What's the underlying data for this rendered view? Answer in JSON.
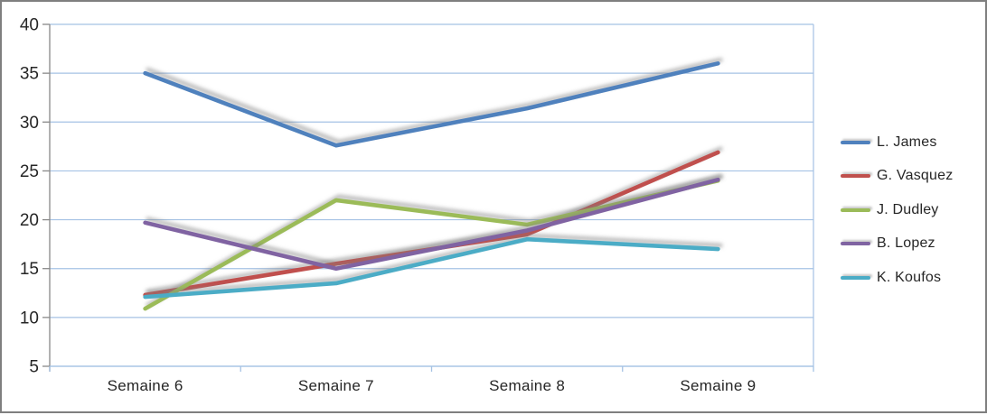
{
  "chart_data": {
    "type": "line",
    "title": "",
    "xlabel": "",
    "ylabel": "",
    "categories": [
      "Semaine 6",
      "Semaine 7",
      "Semaine 8",
      "Semaine 9"
    ],
    "series": [
      {
        "name": "L. James",
        "color": "#4F81BD",
        "values": [
          35,
          27.6,
          31.4,
          36
        ]
      },
      {
        "name": "G. Vasquez",
        "color": "#C0504D",
        "values": [
          12.3,
          15.5,
          18.5,
          26.9
        ]
      },
      {
        "name": "J. Dudley",
        "color": "#9BBB59",
        "values": [
          10.9,
          22,
          19.5,
          24
        ]
      },
      {
        "name": "B. Lopez",
        "color": "#8064A2",
        "values": [
          19.7,
          15,
          18.9,
          24.1
        ]
      },
      {
        "name": "K. Koufos",
        "color": "#4BACC6",
        "values": [
          12.1,
          13.5,
          18,
          17
        ]
      }
    ],
    "ylim": [
      5,
      40
    ],
    "yticks": [
      40,
      35,
      30,
      25,
      20,
      15,
      10,
      5
    ],
    "grid": true,
    "legend_position": "right",
    "colors": {
      "gridline": "#A5C2E4",
      "x_axis": "#A5C2E4",
      "y_axis": "#898989",
      "tick_text": "#262626",
      "plot_background": "#FFFFFF",
      "frame_border": "#7F7F7F"
    }
  }
}
